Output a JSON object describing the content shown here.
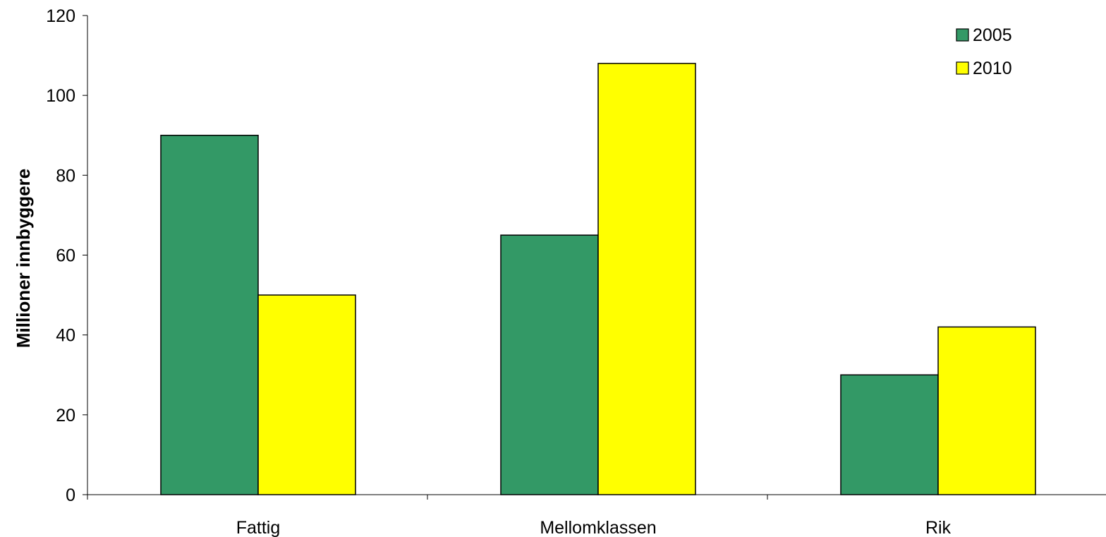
{
  "chart_data": {
    "type": "bar",
    "title": "",
    "xlabel": "",
    "ylabel": "Millioner innbyggere",
    "categories": [
      "Fattig",
      "Mellomklassen",
      "Rik"
    ],
    "series": [
      {
        "name": "2005",
        "color": "#339966",
        "values": [
          90,
          65,
          30
        ]
      },
      {
        "name": "2010",
        "color": "#ffff00",
        "values": [
          50,
          108,
          42
        ]
      }
    ],
    "ylim": [
      0,
      120
    ],
    "yticks": [
      0,
      20,
      40,
      60,
      80,
      100,
      120
    ],
    "grid": false,
    "legend_position": "top-right"
  }
}
